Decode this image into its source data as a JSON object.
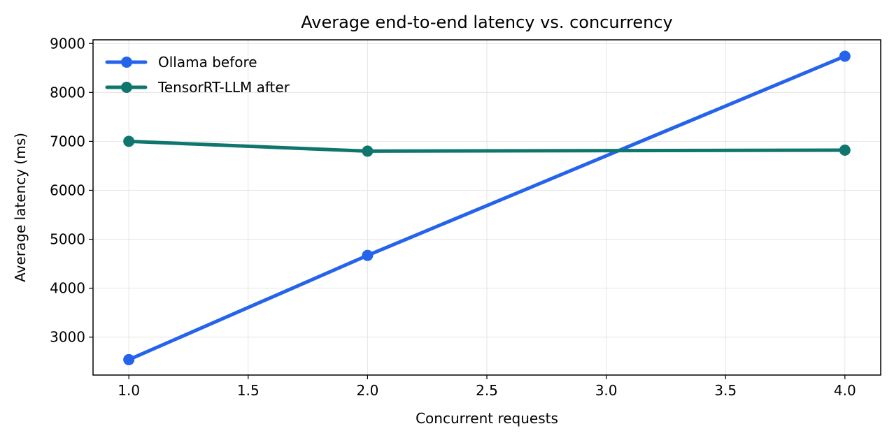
{
  "chart_data": {
    "type": "line",
    "title": "Average end-to-end latency vs. concurrency",
    "xlabel": "Concurrent requests",
    "ylabel": "Average latency (ms)",
    "xlim": [
      0.85,
      4.15
    ],
    "ylim": [
      2225,
      9075
    ],
    "x_ticks": [
      1.0,
      1.5,
      2.0,
      2.5,
      3.0,
      3.5,
      4.0
    ],
    "x_tick_labels": [
      "1.0",
      "1.5",
      "2.0",
      "2.5",
      "3.0",
      "3.5",
      "4.0"
    ],
    "y_ticks": [
      3000,
      4000,
      5000,
      6000,
      7000,
      8000,
      9000
    ],
    "y_tick_labels": [
      "3000",
      "4000",
      "5000",
      "6000",
      "7000",
      "8000",
      "9000"
    ],
    "grid": true,
    "legend_position": "top-left",
    "series": [
      {
        "name": "Ollama before",
        "color": "#2563eb",
        "x": [
          1,
          2,
          4
        ],
        "values": [
          2540,
          4670,
          8740
        ]
      },
      {
        "name": "TensorRT-LLM after",
        "color": "#0f766e",
        "x": [
          1,
          2,
          4
        ],
        "values": [
          7000,
          6800,
          6820
        ]
      }
    ]
  }
}
